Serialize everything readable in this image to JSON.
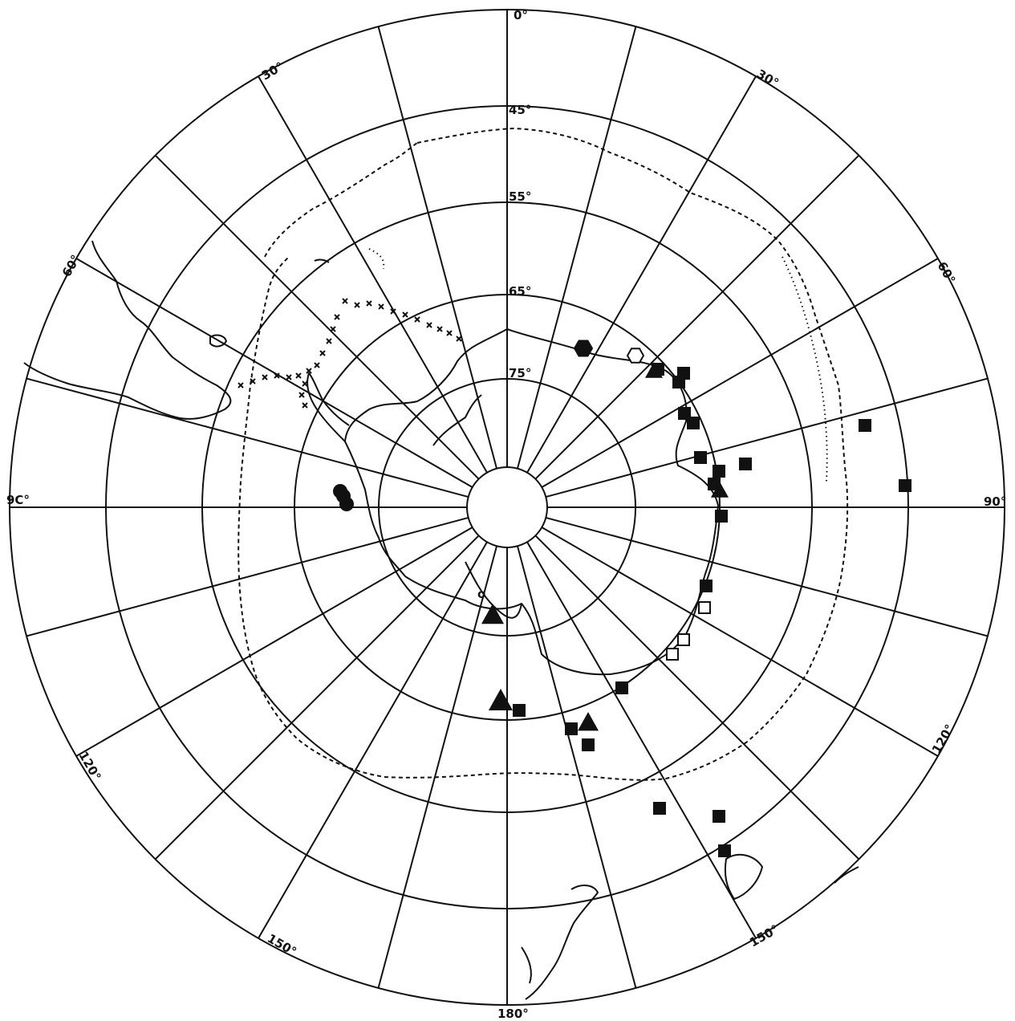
{
  "map": {
    "meridian_labels": [
      {
        "id": "lon-0",
        "text": "0°"
      },
      {
        "id": "lon-30-left",
        "text": "30°"
      },
      {
        "id": "lon-30-right",
        "text": "30°"
      },
      {
        "id": "lon-60-left",
        "text": "60°"
      },
      {
        "id": "lon-60-right",
        "text": "60°"
      },
      {
        "id": "lon-90-left",
        "text": "9C°"
      },
      {
        "id": "lon-90-right",
        "text": "90°"
      },
      {
        "id": "lon-120-left",
        "text": "120°"
      },
      {
        "id": "lon-120-right",
        "text": "120°"
      },
      {
        "id": "lon-150-left",
        "text": "150°"
      },
      {
        "id": "lon-150-right",
        "text": "150°"
      },
      {
        "id": "lon-180",
        "text": "180°"
      }
    ],
    "latitude_labels": [
      {
        "id": "lat-45",
        "text": "45°"
      },
      {
        "id": "lat-55",
        "text": "55°"
      },
      {
        "id": "lat-65",
        "text": "65°"
      },
      {
        "id": "lat-75",
        "text": "75°"
      }
    ],
    "symbol_text": "o",
    "colors": {
      "ink": "#111111",
      "paper": "#ffffff"
    },
    "marker_types": [
      "filled-square",
      "open-square",
      "filled-triangle",
      "filled-circle",
      "open-hexagon",
      "filled-hexagon",
      "cross"
    ]
  }
}
